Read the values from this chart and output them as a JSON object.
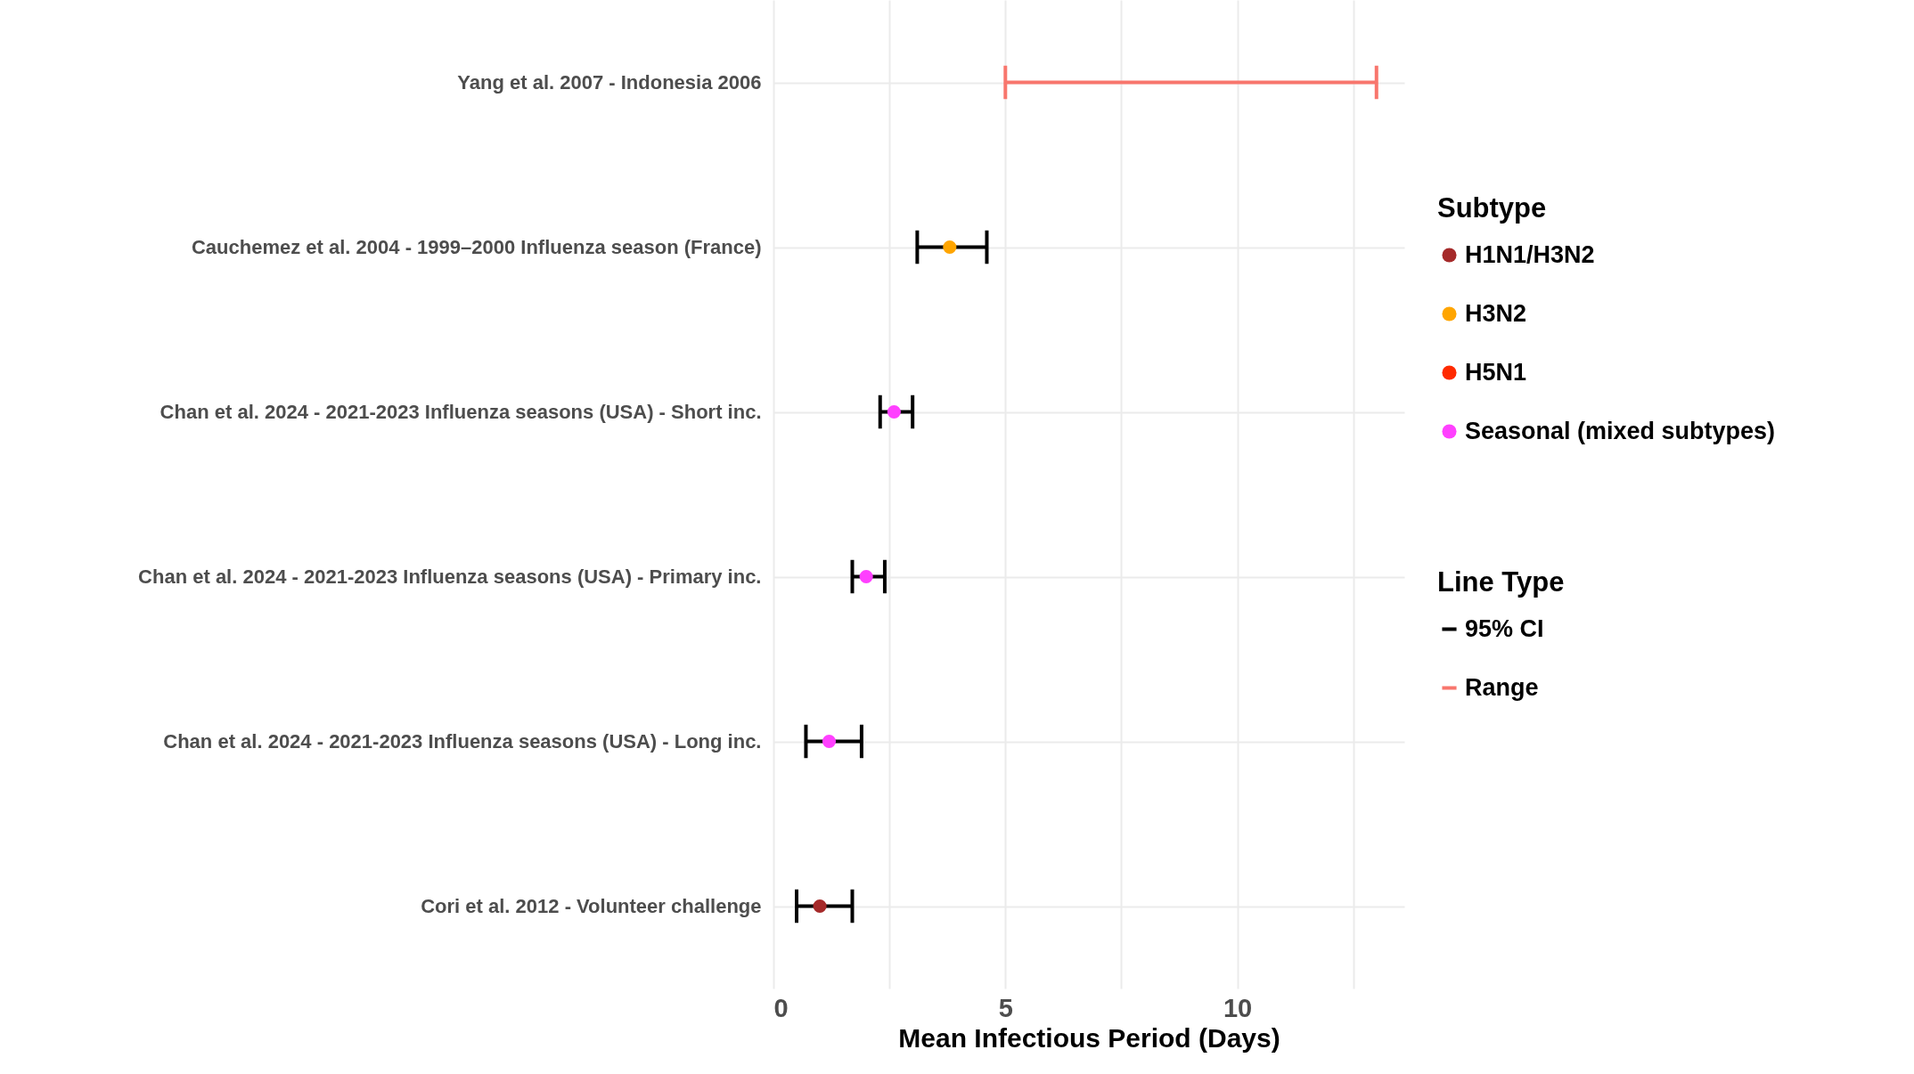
{
  "chart_data": {
    "type": "scatter",
    "orientation": "horizontal",
    "xlabel": "Mean Infectious Period (Days)",
    "legend_title": "Subtype",
    "annotations": [
      "Line Type"
    ],
    "categories": [
      "Yang et al. 2007 - Indonesia 2006",
      "Cauchemez et al. 2004 - 1999–2000 Influenza season (France)",
      "Chan et al. 2024 - 2021-2023 Influenza seasons (USA) - Short inc.",
      "Chan et al. 2024 - 2021-2023 Influenza seasons (USA) - Primary  inc.",
      "Chan et al. 2024 - 2021-2023 Influenza seasons (USA) - Long inc.",
      "Cori et al. 2012 - Volunteer challenge"
    ],
    "series": [
      {
        "name": "H1N1/H3N2",
        "color": "#a52a2a",
        "values": [
          null,
          null,
          null,
          null,
          null,
          1.0
        ]
      },
      {
        "name": "H3N2",
        "color": "#ffa500",
        "values": [
          null,
          3.8,
          null,
          null,
          null,
          null
        ]
      },
      {
        "name": "H5N1",
        "color": "#ff2a00",
        "values": [
          null,
          null,
          null,
          null,
          null,
          null
        ]
      },
      {
        "name": "Seasonal (mixed subtypes)",
        "color": "#ff40ff",
        "values": [
          null,
          null,
          2.6,
          2.0,
          1.2,
          null
        ]
      },
      {
        "name": "95% CI",
        "type": "bar",
        "color": "#000000",
        "base": [
          null,
          3.1,
          2.3,
          1.7,
          0.7,
          0.5
        ],
        "values": [
          null,
          1.5,
          0.7,
          0.7,
          1.2,
          1.2
        ]
      },
      {
        "name": "Range",
        "type": "bar",
        "color": "#f8766d",
        "base": [
          5,
          null,
          null,
          null,
          null,
          null
        ],
        "values": [
          8,
          null,
          null,
          null,
          null,
          null
        ]
      }
    ],
    "xlim": [
      0,
      13.6
    ],
    "xticks": [
      0,
      {
        "value": 2.5,
        "label": null
      },
      5,
      {
        "value": 7.5,
        "label": null
      },
      10,
      {
        "value": 12.5,
        "label": null
      }
    ],
    "grid": true,
    "legend": "right",
    "marker": "circle"
  }
}
